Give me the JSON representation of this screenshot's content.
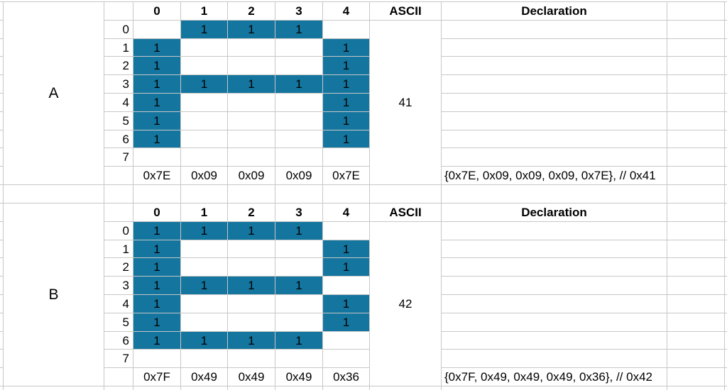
{
  "palette": {
    "cell_fill_teal": "#14759E",
    "grid_line": "#C7C7C7",
    "text": "#000000",
    "background": "#FFFFFF"
  },
  "headers": {
    "columns": [
      "0",
      "1",
      "2",
      "3",
      "4"
    ],
    "ascii": "ASCII",
    "declaration": "Declaration"
  },
  "row_labels": [
    "0",
    "1",
    "2",
    "3",
    "4",
    "5",
    "6",
    "7"
  ],
  "cell_value_label": "1",
  "sections": [
    {
      "letter": "A",
      "ascii": "41",
      "bitmap": [
        [
          0,
          1,
          1,
          1,
          0
        ],
        [
          1,
          0,
          0,
          0,
          1
        ],
        [
          1,
          0,
          0,
          0,
          1
        ],
        [
          1,
          1,
          1,
          1,
          1
        ],
        [
          1,
          0,
          0,
          0,
          1
        ],
        [
          1,
          0,
          0,
          0,
          1
        ],
        [
          1,
          0,
          0,
          0,
          1
        ],
        [
          0,
          0,
          0,
          0,
          0
        ]
      ],
      "hex": [
        "0x7E",
        "0x09",
        "0x09",
        "0x09",
        "0x7E"
      ],
      "declaration": "{0x7E, 0x09, 0x09, 0x09, 0x7E}, // 0x41"
    },
    {
      "letter": "B",
      "ascii": "42",
      "bitmap": [
        [
          1,
          1,
          1,
          1,
          0
        ],
        [
          1,
          0,
          0,
          0,
          1
        ],
        [
          1,
          0,
          0,
          0,
          1
        ],
        [
          1,
          1,
          1,
          1,
          0
        ],
        [
          1,
          0,
          0,
          0,
          1
        ],
        [
          1,
          0,
          0,
          0,
          1
        ],
        [
          1,
          1,
          1,
          1,
          0
        ],
        [
          0,
          0,
          0,
          0,
          0
        ]
      ],
      "hex": [
        "0x7F",
        "0x49",
        "0x49",
        "0x49",
        "0x36"
      ],
      "declaration": "{0x7F, 0x49, 0x49, 0x49, 0x36}, // 0x42"
    }
  ]
}
